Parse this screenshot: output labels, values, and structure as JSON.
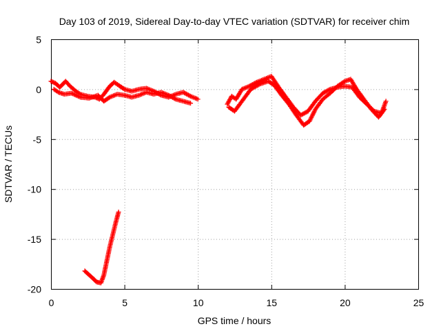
{
  "chart_data": {
    "type": "scatter",
    "title": "Day 103 of 2019, Sidereal Day-to-day VTEC variation (SDTVAR) for receiver chim",
    "xlabel": "GPS time / hours",
    "ylabel": "SDTVAR / TECUs",
    "xlim": [
      0,
      25
    ],
    "ylim": [
      -20,
      5
    ],
    "xticks": [
      0,
      5,
      10,
      15,
      20,
      25
    ],
    "yticks": [
      -20,
      -15,
      -10,
      -5,
      0,
      5
    ],
    "grid": true,
    "marker": "+",
    "color": "#ff0000",
    "series": [
      {
        "name": "SDTVAR bands near zero (upper curves)",
        "points": [
          [
            0.0,
            0.8
          ],
          [
            0.3,
            0.6
          ],
          [
            0.6,
            0.2
          ],
          [
            1.0,
            0.8
          ],
          [
            1.3,
            0.3
          ],
          [
            1.7,
            -0.2
          ],
          [
            2.0,
            -0.5
          ],
          [
            2.5,
            -0.7
          ],
          [
            3.0,
            -0.8
          ],
          [
            3.3,
            -1.0
          ],
          [
            3.6,
            -0.5
          ],
          [
            4.0,
            0.3
          ],
          [
            4.3,
            0.7
          ],
          [
            4.6,
            0.4
          ],
          [
            5.0,
            0.0
          ],
          [
            5.5,
            -0.2
          ],
          [
            6.0,
            0.0
          ],
          [
            6.5,
            0.1
          ],
          [
            7.0,
            -0.2
          ],
          [
            7.5,
            -0.6
          ],
          [
            8.0,
            -0.8
          ],
          [
            8.5,
            -0.5
          ],
          [
            9.0,
            -0.3
          ],
          [
            9.5,
            -0.7
          ],
          [
            10.0,
            -1.0
          ],
          [
            12.0,
            -1.5
          ],
          [
            12.3,
            -0.7
          ],
          [
            12.6,
            -1.0
          ],
          [
            13.0,
            0.0
          ],
          [
            13.5,
            0.3
          ],
          [
            14.0,
            0.7
          ],
          [
            14.5,
            1.0
          ],
          [
            15.0,
            1.3
          ],
          [
            15.5,
            0.2
          ],
          [
            16.0,
            -0.8
          ],
          [
            16.5,
            -1.8
          ],
          [
            17.0,
            -2.6
          ],
          [
            17.5,
            -2.2
          ],
          [
            18.0,
            -1.2
          ],
          [
            18.5,
            -0.4
          ],
          [
            19.0,
            0.0
          ],
          [
            19.5,
            0.2
          ],
          [
            20.0,
            0.3
          ],
          [
            20.5,
            0.2
          ],
          [
            21.0,
            -0.8
          ],
          [
            21.5,
            -1.5
          ],
          [
            22.0,
            -2.2
          ],
          [
            22.5,
            -2.4
          ],
          [
            22.8,
            -1.2
          ]
        ]
      },
      {
        "name": "SDTVAR bands near zero (lower curves)",
        "points": [
          [
            0.2,
            0.0
          ],
          [
            0.5,
            -0.3
          ],
          [
            0.9,
            -0.5
          ],
          [
            1.4,
            -0.4
          ],
          [
            2.0,
            -0.8
          ],
          [
            2.6,
            -0.9
          ],
          [
            3.2,
            -0.6
          ],
          [
            3.6,
            -1.2
          ],
          [
            4.0,
            -0.8
          ],
          [
            4.5,
            -0.5
          ],
          [
            5.0,
            -0.6
          ],
          [
            5.5,
            -0.8
          ],
          [
            6.0,
            -0.6
          ],
          [
            6.5,
            -0.3
          ],
          [
            7.0,
            -0.5
          ],
          [
            7.5,
            -0.3
          ],
          [
            8.0,
            -0.6
          ],
          [
            8.5,
            -1.0
          ],
          [
            9.0,
            -1.2
          ],
          [
            9.5,
            -1.4
          ],
          [
            12.1,
            -1.8
          ],
          [
            12.5,
            -2.2
          ],
          [
            13.0,
            -1.2
          ],
          [
            13.6,
            0.0
          ],
          [
            14.2,
            0.5
          ],
          [
            14.8,
            0.8
          ],
          [
            15.2,
            0.4
          ],
          [
            15.7,
            -0.6
          ],
          [
            16.2,
            -1.5
          ],
          [
            16.7,
            -2.6
          ],
          [
            17.2,
            -3.6
          ],
          [
            17.6,
            -3.2
          ],
          [
            18.0,
            -2.0
          ],
          [
            18.5,
            -1.0
          ],
          [
            19.0,
            -0.4
          ],
          [
            19.5,
            0.3
          ],
          [
            20.0,
            0.8
          ],
          [
            20.4,
            1.0
          ],
          [
            20.8,
            0.0
          ],
          [
            21.3,
            -1.0
          ],
          [
            21.8,
            -2.0
          ],
          [
            22.3,
            -2.8
          ],
          [
            22.7,
            -2.0
          ]
        ]
      },
      {
        "name": "SDTVAR deep excursion",
        "points": [
          [
            2.3,
            -18.2
          ],
          [
            2.6,
            -18.6
          ],
          [
            2.9,
            -19.0
          ],
          [
            3.1,
            -19.3
          ],
          [
            3.4,
            -19.4
          ],
          [
            3.6,
            -18.6
          ],
          [
            3.8,
            -17.2
          ],
          [
            4.0,
            -15.8
          ],
          [
            4.2,
            -14.6
          ],
          [
            4.4,
            -13.4
          ],
          [
            4.6,
            -12.3
          ]
        ]
      }
    ]
  }
}
